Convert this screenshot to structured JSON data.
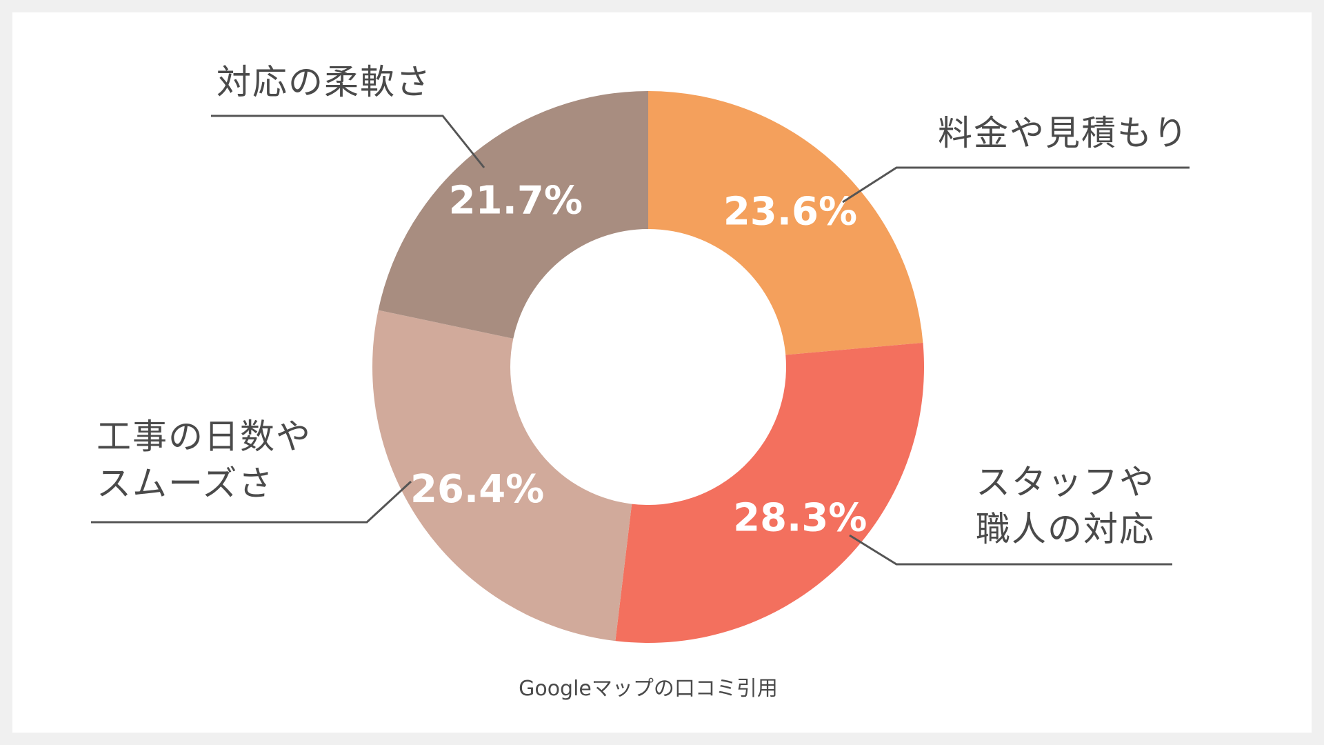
{
  "chart_data": {
    "type": "pie",
    "variant": "donut",
    "categories": [
      "料金や見積もり",
      "スタッフや職人の対応",
      "工事の日数やスムーズさ",
      "対応の柔軟さ"
    ],
    "category_lines": [
      [
        "料金や見積もり"
      ],
      [
        "スタッフや",
        "職人の対応"
      ],
      [
        "工事の日数や",
        "スムーズさ"
      ],
      [
        "対応の柔軟さ"
      ]
    ],
    "values": [
      23.6,
      28.3,
      26.4,
      21.7
    ],
    "value_labels": [
      "23.6%",
      "28.3%",
      "26.4%",
      "21.7%"
    ],
    "colors": [
      "#f4a05c",
      "#f3705e",
      "#d1aa9b",
      "#a88d80"
    ],
    "start_angle_deg": 0,
    "direction": "clockwise",
    "legend": "none",
    "title": "",
    "source": "Googleマップの口コミ引用"
  }
}
